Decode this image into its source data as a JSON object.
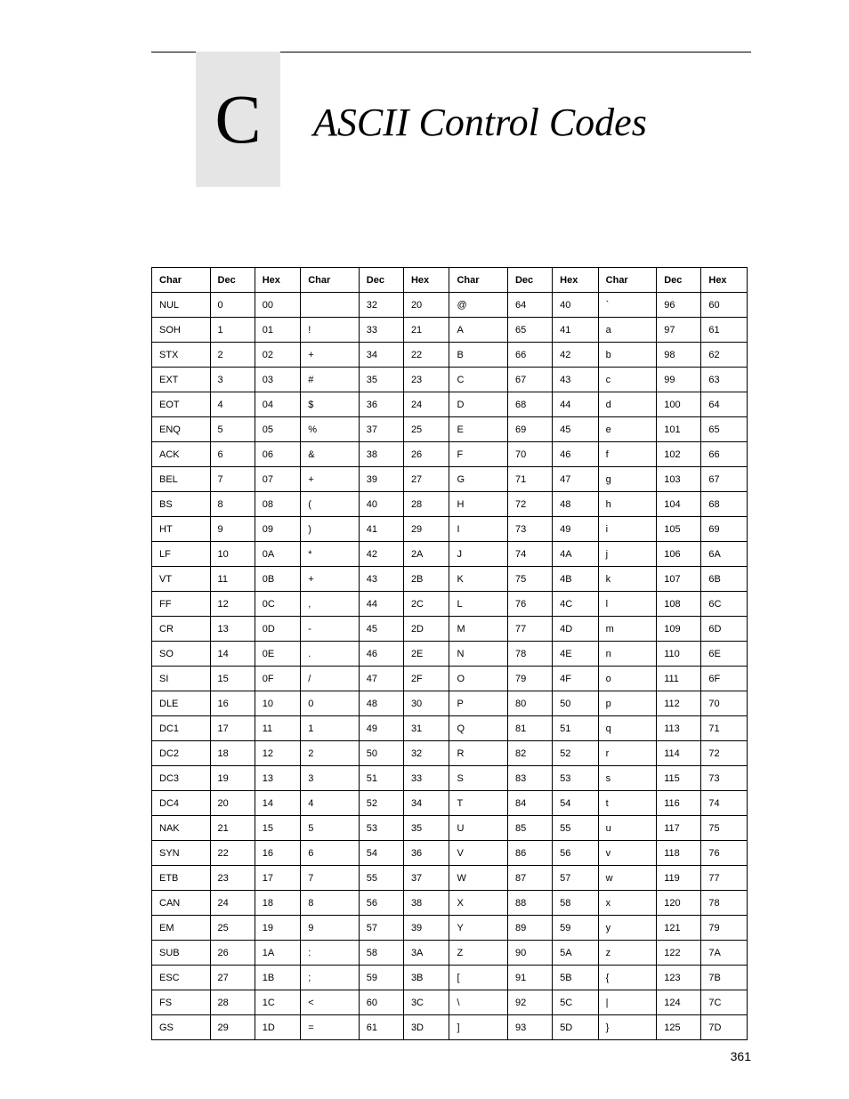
{
  "chapter": {
    "letter": "C",
    "title": "ASCII Control Codes"
  },
  "page_number": "361",
  "table": {
    "type": "table",
    "background_color": "#ffffff",
    "header_box_color": "#e5e5e5",
    "border_color": "#000000",
    "font_family": "Arial",
    "header_fontsize": 11,
    "cell_fontsize": 11,
    "columns": [
      "Char",
      "Dec",
      "Hex",
      "Char",
      "Dec",
      "Hex",
      "Char",
      "Dec",
      "Hex",
      "Char",
      "Dec",
      "Hex"
    ],
    "rows": [
      [
        "NUL",
        "0",
        "00",
        "",
        "32",
        "20",
        "@",
        "64",
        "40",
        "`",
        "96",
        "60"
      ],
      [
        "SOH",
        "1",
        "01",
        "!",
        "33",
        "21",
        "A",
        "65",
        "41",
        "a",
        "97",
        "61"
      ],
      [
        "STX",
        "2",
        "02",
        "+",
        "34",
        "22",
        "B",
        "66",
        "42",
        "b",
        "98",
        "62"
      ],
      [
        "EXT",
        "3",
        "03",
        "#",
        "35",
        "23",
        "C",
        "67",
        "43",
        "c",
        "99",
        "63"
      ],
      [
        "EOT",
        "4",
        "04",
        "$",
        "36",
        "24",
        "D",
        "68",
        "44",
        "d",
        "100",
        "64"
      ],
      [
        "ENQ",
        "5",
        "05",
        "%",
        "37",
        "25",
        "E",
        "69",
        "45",
        "e",
        "101",
        "65"
      ],
      [
        "ACK",
        "6",
        "06",
        "&",
        "38",
        "26",
        "F",
        "70",
        "46",
        "f",
        "102",
        "66"
      ],
      [
        "BEL",
        "7",
        "07",
        "+",
        "39",
        "27",
        "G",
        "71",
        "47",
        "g",
        "103",
        "67"
      ],
      [
        "BS",
        "8",
        "08",
        "(",
        "40",
        "28",
        "H",
        "72",
        "48",
        "h",
        "104",
        "68"
      ],
      [
        "HT",
        "9",
        "09",
        ")",
        "41",
        "29",
        "I",
        "73",
        "49",
        "i",
        "105",
        "69"
      ],
      [
        "LF",
        "10",
        "0A",
        "*",
        "42",
        "2A",
        "J",
        "74",
        "4A",
        "j",
        "106",
        "6A"
      ],
      [
        "VT",
        "11",
        "0B",
        "+",
        "43",
        "2B",
        "K",
        "75",
        "4B",
        "k",
        "107",
        "6B"
      ],
      [
        "FF",
        "12",
        "0C",
        ",",
        "44",
        "2C",
        "L",
        "76",
        "4C",
        "l",
        "108",
        "6C"
      ],
      [
        "CR",
        "13",
        "0D",
        "-",
        "45",
        "2D",
        "M",
        "77",
        "4D",
        "m",
        "109",
        "6D"
      ],
      [
        "SO",
        "14",
        "0E",
        ".",
        "46",
        "2E",
        "N",
        "78",
        "4E",
        "n",
        "110",
        "6E"
      ],
      [
        "SI",
        "15",
        "0F",
        "/",
        "47",
        "2F",
        "O",
        "79",
        "4F",
        "o",
        "111",
        "6F"
      ],
      [
        "DLE",
        "16",
        "10",
        "0",
        "48",
        "30",
        "P",
        "80",
        "50",
        "p",
        "112",
        "70"
      ],
      [
        "DC1",
        "17",
        "11",
        "1",
        "49",
        "31",
        "Q",
        "81",
        "51",
        "q",
        "113",
        "71"
      ],
      [
        "DC2",
        "18",
        "12",
        "2",
        "50",
        "32",
        "R",
        "82",
        "52",
        "r",
        "114",
        "72"
      ],
      [
        "DC3",
        "19",
        "13",
        "3",
        "51",
        "33",
        "S",
        "83",
        "53",
        "s",
        "115",
        "73"
      ],
      [
        "DC4",
        "20",
        "14",
        "4",
        "52",
        "34",
        "T",
        "84",
        "54",
        "t",
        "116",
        "74"
      ],
      [
        "NAK",
        "21",
        "15",
        "5",
        "53",
        "35",
        "U",
        "85",
        "55",
        "u",
        "117",
        "75"
      ],
      [
        "SYN",
        "22",
        "16",
        "6",
        "54",
        "36",
        "V",
        "86",
        "56",
        "v",
        "118",
        "76"
      ],
      [
        "ETB",
        "23",
        "17",
        "7",
        "55",
        "37",
        "W",
        "87",
        "57",
        "w",
        "119",
        "77"
      ],
      [
        "CAN",
        "24",
        "18",
        "8",
        "56",
        "38",
        "X",
        "88",
        "58",
        "x",
        "120",
        "78"
      ],
      [
        "EM",
        "25",
        "19",
        "9",
        "57",
        "39",
        "Y",
        "89",
        "59",
        "y",
        "121",
        "79"
      ],
      [
        "SUB",
        "26",
        "1A",
        ":",
        "58",
        "3A",
        "Z",
        "90",
        "5A",
        "z",
        "122",
        "7A"
      ],
      [
        "ESC",
        "27",
        "1B",
        ";",
        "59",
        "3B",
        "[",
        "91",
        "5B",
        "{",
        "123",
        "7B"
      ],
      [
        "FS",
        "28",
        "1C",
        "<",
        "60",
        "3C",
        "\\",
        "92",
        "5C",
        "|",
        "124",
        "7C"
      ],
      [
        "GS",
        "29",
        "1D",
        "=",
        "61",
        "3D",
        "]",
        "93",
        "5D",
        "}",
        "125",
        "7D"
      ]
    ]
  }
}
